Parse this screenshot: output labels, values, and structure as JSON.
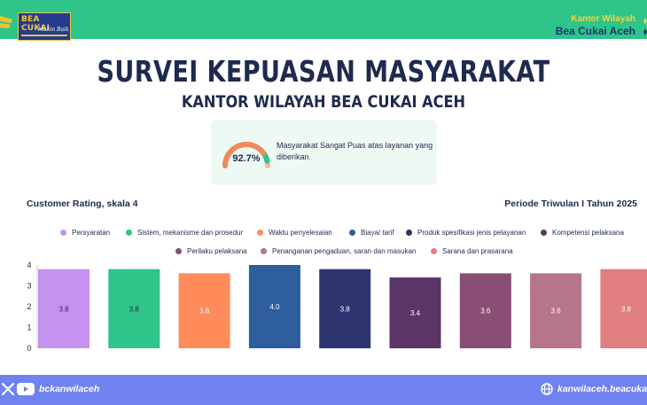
{
  "header": {
    "logo_title": "BEA CUKAI",
    "logo_tagline": "Makin Baik",
    "office_line1": "Kantor Wilayah",
    "office_line2": "Bea Cukai Aceh"
  },
  "title": "SURVEI KEPUASAN MASYARAKAT",
  "subtitle": "KANTOR WILAYAH BEA CUKAI ACEH",
  "satisfaction": {
    "value_label": "92.7%",
    "value": 0.927,
    "text": "Masyarakat Sangat Puas atas layanan yang diberikan"
  },
  "rating_label": "Customer Rating, skala 4",
  "period_label": "Periode Triwulan I Tahun 2025",
  "chart_data": {
    "type": "bar",
    "categories": [
      "Persyaratan",
      "Sistem, mekanisme dan prosedur",
      "Waktu penyelesaian",
      "Biaya/ tarif",
      "Produk spesifikasi jenis pelayanan",
      "Kompetensi pelaksana",
      "Perilaku pelaksana",
      "Penanganan pengaduan, saran dan masukan",
      "Sarana dan prasarana"
    ],
    "values": [
      3.8,
      3.8,
      3.6,
      4.0,
      3.8,
      3.4,
      3.6,
      3.6,
      3.8
    ],
    "value_labels": [
      "3.8",
      "3.8",
      "3.6",
      "4.0",
      "3.8",
      "3.4",
      "3.6",
      "3.6",
      "3.8"
    ],
    "colors": [
      "#c592f0",
      "#2ec48a",
      "#ff8c5a",
      "#2f5e9e",
      "#2d3470",
      "#5b3566",
      "#8a4e75",
      "#b67589",
      "#e07e80"
    ],
    "y_ticks": [
      "0",
      "1",
      "2",
      "3",
      "4"
    ],
    "ylim": [
      0,
      4
    ],
    "legend_position": "top"
  },
  "footer": {
    "handle": "bckanwilaceh",
    "website": "kanwilaceh.beacukai.go.id"
  },
  "icons": {
    "x": "x-icon",
    "youtube": "youtube-icon",
    "globe": "globe-icon"
  }
}
